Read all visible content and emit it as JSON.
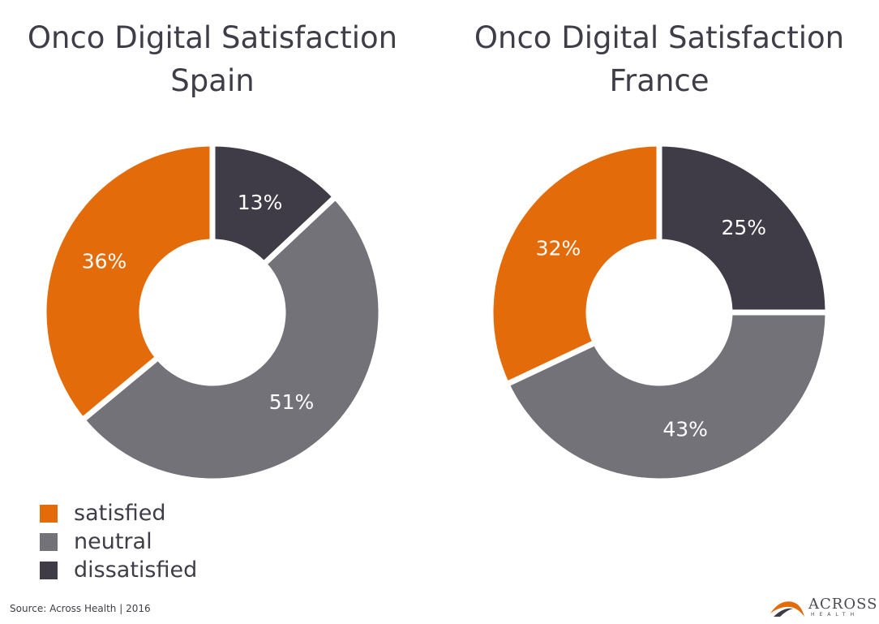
{
  "chart_data": [
    {
      "type": "pie",
      "title": "Onco Digital Satisfaction",
      "subtitle": "Spain",
      "categories": [
        "satisfied",
        "neutral",
        "dissatisfied"
      ],
      "values": [
        36,
        51,
        13
      ],
      "labels": [
        "36%",
        "51%",
        "13%"
      ]
    },
    {
      "type": "pie",
      "title": "Onco Digital Satisfaction",
      "subtitle": "France",
      "categories": [
        "satisfied",
        "neutral",
        "dissatisfied"
      ],
      "values": [
        32,
        43,
        25
      ],
      "labels": [
        "32%",
        "43%",
        "25%"
      ]
    }
  ],
  "legend": {
    "items": [
      {
        "label": "satisfied",
        "color": "#e36b0a"
      },
      {
        "label": "neutral",
        "color": "#737279"
      },
      {
        "label": "dissatisfied",
        "color": "#3f3c48"
      }
    ]
  },
  "colors": {
    "satisfied": "#e36b0a",
    "neutral": "#737279",
    "dissatisfied": "#3f3c48",
    "label_dark": "#3f3e48",
    "label_light": "#ffffff"
  },
  "footer": {
    "source": "Source: Across Health  |  2016"
  },
  "logo": {
    "name": "ACROSS",
    "sub": "HEALTH",
    "icon": "arc-swoosh-icon"
  }
}
